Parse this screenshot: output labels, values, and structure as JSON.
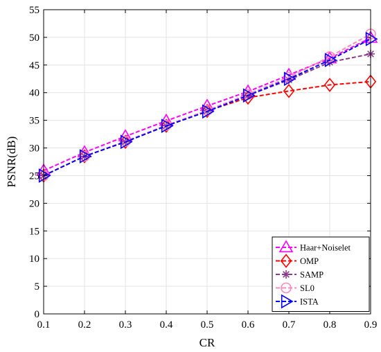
{
  "chart_data": {
    "type": "line",
    "xlabel": "CR",
    "ylabel": "PSNR(dB)",
    "xlim": [
      0.1,
      0.9
    ],
    "ylim": [
      0,
      55
    ],
    "x": [
      0.1,
      0.2,
      0.3,
      0.4,
      0.5,
      0.6,
      0.7,
      0.8,
      0.9
    ],
    "xticks": [
      "0.1",
      "0.2",
      "0.3",
      "0.4",
      "0.5",
      "0.6",
      "0.7",
      "0.8",
      "0.9"
    ],
    "yticks": [
      "0",
      "5",
      "10",
      "15",
      "20",
      "25",
      "30",
      "35",
      "40",
      "45",
      "50",
      "55"
    ],
    "grid": true,
    "legend_position": "bottom-right",
    "series": [
      {
        "name": "Haar+Noiselet",
        "color": "#ff00ff",
        "marker": "triangle-up",
        "values": [
          25.9,
          29.2,
          32.1,
          34.9,
          37.6,
          40.2,
          43.2,
          46.2,
          49.9
        ]
      },
      {
        "name": "OMP",
        "color": "#ff0000",
        "marker": "diamond",
        "values": [
          25.0,
          28.5,
          31.1,
          34.0,
          36.7,
          39.1,
          40.3,
          41.4,
          42.0
        ]
      },
      {
        "name": "SAMP",
        "color": "#8b3a8b",
        "marker": "asterisk",
        "values": [
          25.0,
          28.5,
          31.1,
          34.0,
          36.7,
          39.5,
          42.3,
          45.5,
          47.0
        ]
      },
      {
        "name": "SL0",
        "color": "#ff88bb",
        "marker": "circle",
        "values": [
          25.0,
          28.5,
          31.2,
          34.1,
          36.8,
          39.7,
          42.8,
          46.5,
          50.6
        ]
      },
      {
        "name": "ISTA",
        "color": "#0000ff",
        "marker": "triangle-right",
        "values": [
          25.0,
          28.5,
          31.1,
          34.0,
          36.6,
          39.5,
          42.5,
          45.9,
          49.7
        ]
      }
    ]
  }
}
